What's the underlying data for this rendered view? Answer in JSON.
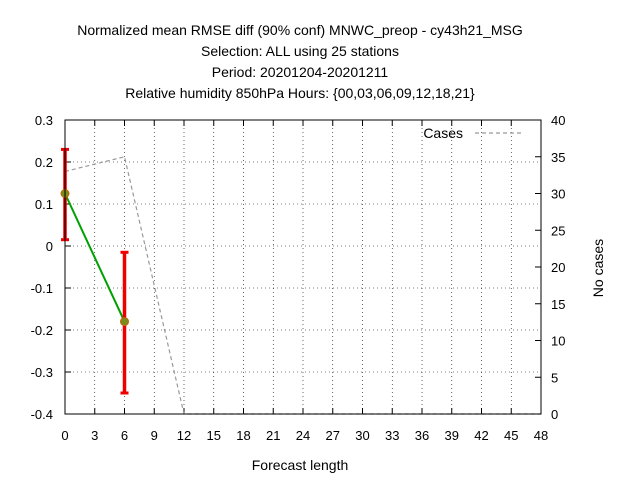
{
  "chart_data": {
    "type": "line",
    "title_lines": [
      "Normalized mean RMSE diff (90% conf) MNWC_preop - cy43h21_MSG",
      "Selection: ALL using    25 stations",
      "Period: 20201204-20201211",
      "Relative humidity 850hPa   Hours: {00,03,06,09,12,18,21}"
    ],
    "xlabel": "Forecast length",
    "ylabel": "",
    "y2label": "No cases",
    "xlim": [
      0,
      48
    ],
    "ylim": [
      -0.4,
      0.3
    ],
    "y2lim": [
      0,
      40
    ],
    "xticks": [
      "0",
      "3",
      "6",
      "9",
      "12",
      "15",
      "18",
      "21",
      "24",
      "27",
      "30",
      "33",
      "36",
      "39",
      "42",
      "45",
      "48"
    ],
    "yticks": [
      "0.3",
      "0.2",
      "0.1",
      "0",
      "-0.1",
      "-0.2",
      "-0.3",
      "-0.4"
    ],
    "y2ticks": [
      "40",
      "35",
      "30",
      "25",
      "20",
      "15",
      "10",
      "5",
      "0"
    ],
    "grid": true,
    "series": [
      {
        "kind": "main",
        "color": "#00a000",
        "x": [
          0,
          6
        ],
        "y": [
          0.125,
          -0.18
        ],
        "err_low": [
          0.015,
          -0.35
        ],
        "err_high": [
          0.23,
          -0.015
        ],
        "err_color": "#ee0000"
      },
      {
        "name": "Cases",
        "kind": "cases",
        "axis": "right",
        "color": "#999999",
        "x": [
          0,
          6,
          12,
          15,
          18,
          21,
          24,
          27,
          30,
          33,
          36,
          39,
          42,
          45,
          48
        ],
        "y": [
          33,
          35,
          0,
          0,
          0,
          0,
          0,
          0,
          0,
          0,
          0,
          0,
          0,
          0,
          0
        ]
      }
    ],
    "legend_position": "top-right"
  }
}
